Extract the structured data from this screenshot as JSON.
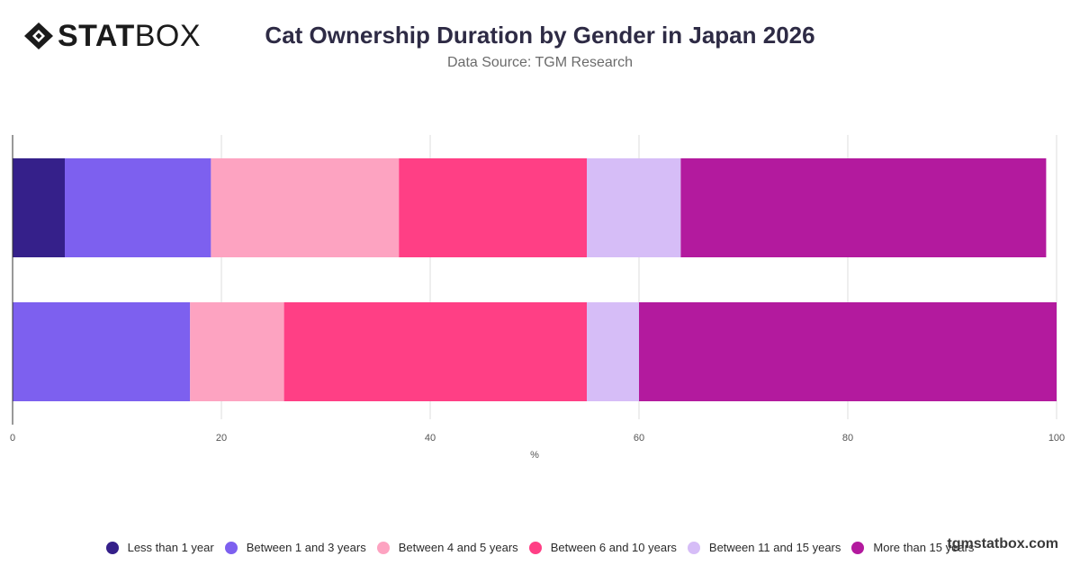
{
  "brand": {
    "logo_text_bold": "STAT",
    "logo_text_regular": "BOX",
    "watermark": "tgmstatbox.com"
  },
  "header": {
    "title": "Cat Ownership Duration by Gender in Japan 2026",
    "subtitle": "Data Source: TGM Research"
  },
  "chart_data": {
    "type": "bar",
    "orientation": "horizontal",
    "stacked": true,
    "title": "Cat Ownership Duration by Gender in Japan 2026",
    "subtitle": "Data Source: TGM Research",
    "xlabel": "%",
    "ylabel": "",
    "xlim": [
      0,
      100
    ],
    "xticks": [
      0,
      20,
      40,
      60,
      80,
      100
    ],
    "grid": true,
    "legend_position": "bottom",
    "categories": [
      "",
      ""
    ],
    "series": [
      {
        "name": "Less than 1 year",
        "color": "#35208a",
        "values": [
          5,
          0
        ]
      },
      {
        "name": "Between 1 and 3 years",
        "color": "#7d60ef",
        "values": [
          14,
          17
        ]
      },
      {
        "name": "Between 4 and 5 years",
        "color": "#fda3c1",
        "values": [
          18,
          9
        ]
      },
      {
        "name": "Between 6 and 10 years",
        "color": "#ff3f85",
        "values": [
          18,
          29
        ]
      },
      {
        "name": "Between 11 and 15 years",
        "color": "#d6bdf7",
        "values": [
          9,
          5
        ]
      },
      {
        "name": "More than 15 years",
        "color": "#b31a9e",
        "values": [
          35,
          40
        ]
      }
    ]
  }
}
